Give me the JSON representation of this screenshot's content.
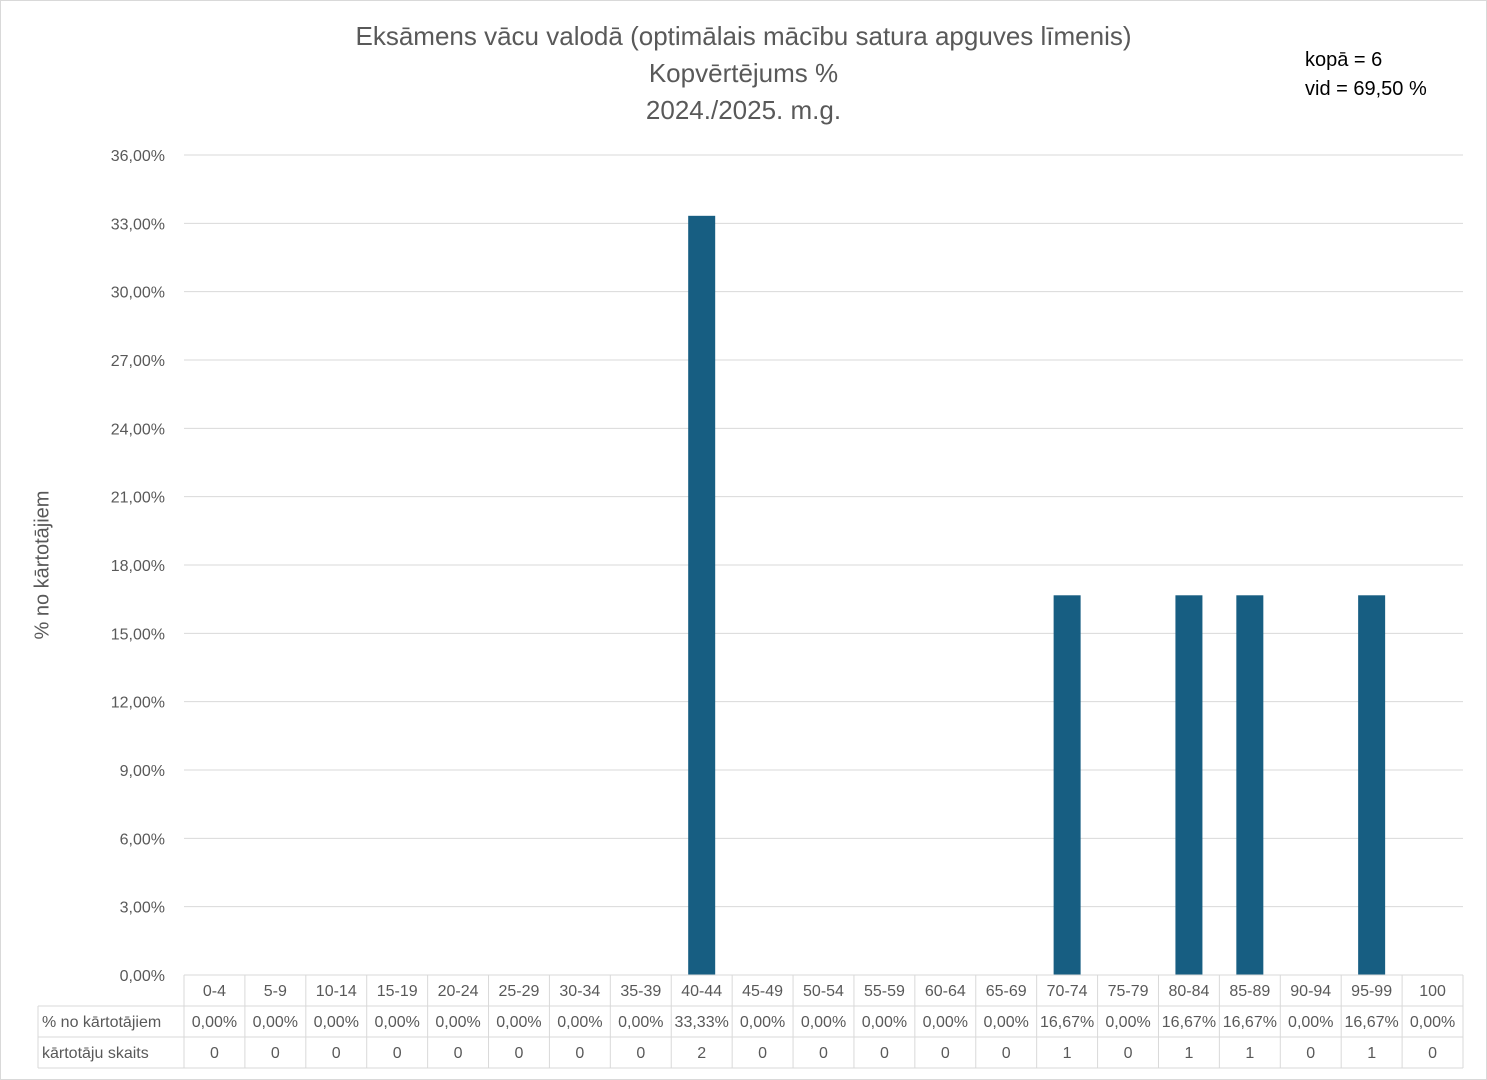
{
  "title_lines": [
    "Eksāmens vācu valodā (optimālais mācību satura apguves līmenis)",
    "Kopvērtējums %",
    "2024./2025. m.g."
  ],
  "summary": {
    "total": "kopā = 6",
    "average": "vid = 69,50 %"
  },
  "colors": {
    "bar": "#175e82",
    "grid": "#d9d9d9",
    "text": "#595959"
  },
  "chart_data": {
    "type": "bar",
    "title": "Eksāmens vācu valodā (optimālais mācību satura apguves līmenis) Kopvērtējums % 2024./2025. m.g.",
    "ylabel": "% no kārtotājiem",
    "ylim": [
      0,
      36
    ],
    "yticks": [
      0,
      3,
      6,
      9,
      12,
      15,
      18,
      21,
      24,
      27,
      30,
      33,
      36
    ],
    "ytick_labels": [
      "0,00%",
      "3,00%",
      "6,00%",
      "9,00%",
      "12,00%",
      "15,00%",
      "18,00%",
      "21,00%",
      "24,00%",
      "27,00%",
      "30,00%",
      "33,00%",
      "36,00%"
    ],
    "grid": true,
    "categories": [
      "0-4",
      "5-9",
      "10-14",
      "15-19",
      "20-24",
      "25-29",
      "30-34",
      "35-39",
      "40-44",
      "45-49",
      "50-54",
      "55-59",
      "60-64",
      "65-69",
      "70-74",
      "75-79",
      "80-84",
      "85-89",
      "90-94",
      "95-99",
      "100"
    ],
    "values": [
      0,
      0,
      0,
      0,
      0,
      0,
      0,
      0,
      33.33,
      0,
      0,
      0,
      0,
      0,
      16.67,
      0,
      16.67,
      16.67,
      0,
      16.67,
      0
    ],
    "table": {
      "rows": [
        {
          "label": "% no kārtotājiem",
          "cells": [
            "0,00%",
            "0,00%",
            "0,00%",
            "0,00%",
            "0,00%",
            "0,00%",
            "0,00%",
            "0,00%",
            "33,33%",
            "0,00%",
            "0,00%",
            "0,00%",
            "0,00%",
            "0,00%",
            "16,67%",
            "0,00%",
            "16,67%",
            "16,67%",
            "0,00%",
            "16,67%",
            "0,00%"
          ]
        },
        {
          "label": "kārtotāju skaits",
          "cells": [
            "0",
            "0",
            "0",
            "0",
            "0",
            "0",
            "0",
            "0",
            "2",
            "0",
            "0",
            "0",
            "0",
            "0",
            "1",
            "0",
            "1",
            "1",
            "0",
            "1",
            "0"
          ]
        }
      ]
    }
  }
}
